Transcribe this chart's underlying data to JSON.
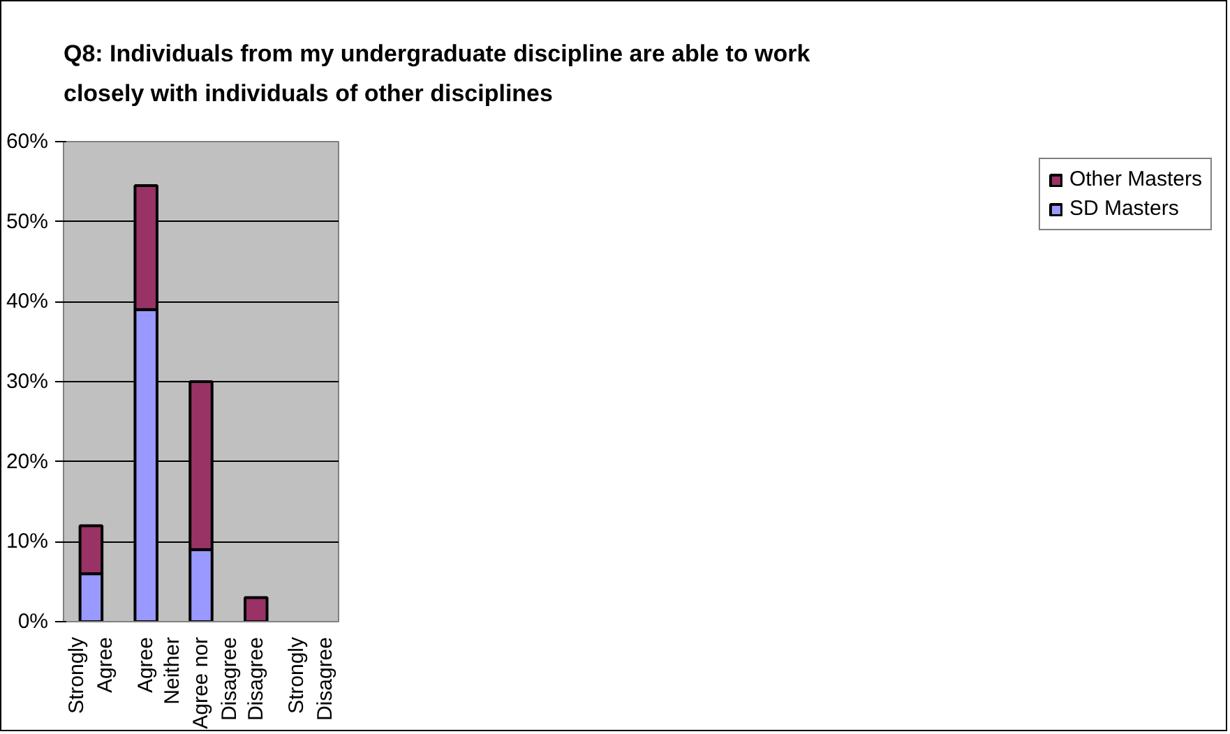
{
  "chart_data": {
    "type": "bar",
    "title": "Q8: Individuals from my undergraduate discipline are able to work closely with individuals of other disciplines",
    "categories": [
      "Strongly Agree",
      "Agree",
      "Neither Agree nor Disagree",
      "Disagree",
      "Strongly Disagree"
    ],
    "series": [
      {
        "name": "SD Masters",
        "color": "#9999ff",
        "values": [
          6,
          39,
          9,
          0,
          0
        ]
      },
      {
        "name": "Other Masters",
        "color": "#993366",
        "values": [
          6,
          15.5,
          21,
          3,
          0
        ]
      }
    ],
    "stacked": true,
    "ylim": [
      0,
      60
    ],
    "yticks": [
      {
        "value": 0,
        "label": "0%"
      },
      {
        "value": 10,
        "label": "10%"
      },
      {
        "value": 20,
        "label": "20%"
      },
      {
        "value": 30,
        "label": "30%"
      },
      {
        "value": 40,
        "label": "40%"
      },
      {
        "value": 50,
        "label": "50%"
      },
      {
        "value": 60,
        "label": "60%"
      }
    ],
    "grid": "y",
    "legend": "right"
  }
}
